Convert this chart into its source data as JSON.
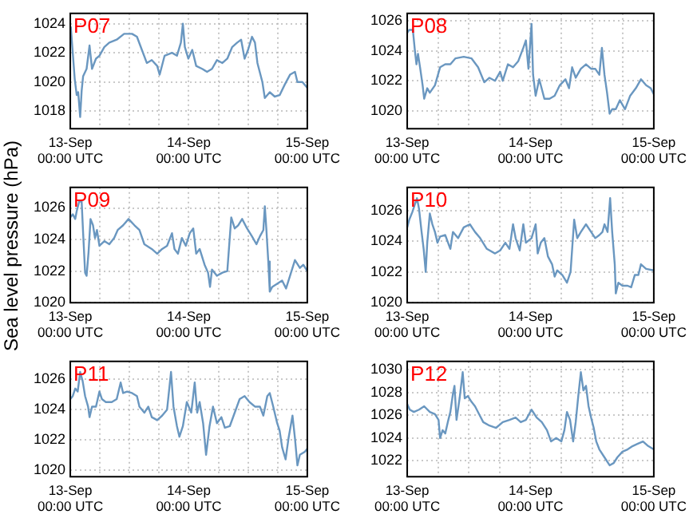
{
  "chart_data": [
    {
      "type": "line",
      "title": "P07",
      "color": "#6a97c0",
      "grid": true,
      "x": [
        "--09-13T00:06",
        "--09-13T00:30",
        "--09-13T00:54",
        "--09-13T01:18",
        "--09-13T01:36",
        "--09-13T02:00",
        "--09-13T02:18",
        "--09-13T02:36",
        "--09-13T03:18",
        "--09-13T03:54",
        "--09-13T04:24",
        "--09-13T05:12",
        "--09-13T05:54",
        "--09-13T06:54",
        "--09-13T07:54",
        "--09-13T09:24",
        "--09-13T10:54",
        "--09-13T12:30",
        "--09-13T13:30",
        "--09-13T14:30",
        "--09-13T15:30",
        "--09-13T16:30",
        "--09-13T17:36",
        "--09-13T18:06",
        "--09-13T19:06",
        "--09-13T20:36",
        "--09-13T21:36",
        "--09-13T22:24",
        "--09-13T22:48",
        "--09-13T23:12",
        "--09-13T23:54",
        "--09-14T00:42",
        "--09-14T01:30",
        "--09-14T02:42",
        "--09-14T03:42",
        "--09-14T04:42",
        "--09-14T05:42",
        "--09-14T06:48",
        "--09-14T07:48",
        "--09-14T08:48",
        "--09-14T09:48",
        "--09-14T10:36",
        "--09-14T11:18",
        "--09-14T12:00",
        "--09-14T12:48",
        "--09-14T13:24",
        "--09-14T13:54",
        "--09-14T14:54",
        "--09-14T15:24",
        "--09-14T16:24",
        "--09-14T17:24",
        "--09-14T18:24",
        "--09-14T19:24",
        "--09-14T20:30",
        "--09-14T21:30",
        "--09-14T22:00",
        "--09-14T23:00",
        "--09-15T00:00"
      ],
      "values": [
        1023.8,
        1022,
        1020.2,
        1019.1,
        1019.3,
        1017.6,
        1019.4,
        1020.4,
        1020.9,
        1022.5,
        1020.9,
        1021.6,
        1021.8,
        1022.4,
        1022.7,
        1022.9,
        1023.3,
        1023.3,
        1023.1,
        1022.2,
        1021.3,
        1021.5,
        1021.1,
        1020.5,
        1021.8,
        1022.0,
        1021.8,
        1022.7,
        1024.0,
        1022.4,
        1021.6,
        1022.2,
        1021.1,
        1020.9,
        1020.7,
        1020.9,
        1021.5,
        1021.3,
        1021.6,
        1022.4,
        1022.7,
        1022.9,
        1021.6,
        1022.2,
        1023.1,
        1022.7,
        1021.3,
        1020.0,
        1018.9,
        1019.3,
        1019.0,
        1019.1,
        1019.8,
        1020.5,
        1020.7,
        1020.0,
        1020.0,
        1019.6
      ],
      "xlim": [
        "--09-13",
        "--09-15"
      ],
      "xticks": [
        {
          "value": "--09-13",
          "label": "13-Sep\n00:00 UTC"
        },
        {
          "value": "--09-13T06:00",
          "label": null
        },
        {
          "value": "--09-13T12:00",
          "label": null
        },
        {
          "value": "--09-13T18:00",
          "label": null
        },
        {
          "value": "--09-14",
          "label": "14-Sep\n00:00 UTC"
        },
        {
          "value": "--09-14T06:00",
          "label": null
        },
        {
          "value": "--09-14T12:00",
          "label": null
        },
        {
          "value": "--09-14T18:00",
          "label": null
        },
        {
          "value": "--09-15",
          "label": "15-Sep\n00:00 UTC"
        }
      ],
      "ylim": [
        1016.8,
        1024.7
      ],
      "yticks": [
        1018,
        1020,
        1022,
        1024
      ]
    },
    {
      "type": "line",
      "title": "P08",
      "color": "#6a97c0",
      "grid": true,
      "x": [
        "--09-13T00:00",
        "--09-13T00:24",
        "--09-13T01:06",
        "--09-13T01:30",
        "--09-13T01:48",
        "--09-13T02:06",
        "--09-13T02:30",
        "--09-13T03:00",
        "--09-13T03:18",
        "--09-13T03:54",
        "--09-13T04:24",
        "--09-13T05:24",
        "--09-13T06:24",
        "--09-13T07:24",
        "--09-13T08:24",
        "--09-13T09:24",
        "--09-13T11:00",
        "--09-13T12:30",
        "--09-13T13:48",
        "--09-13T15:00",
        "--09-13T16:00",
        "--09-13T17:06",
        "--09-13T18:06",
        "--09-13T18:36",
        "--09-13T19:36",
        "--09-13T20:36",
        "--09-13T21:36",
        "--09-13T22:36",
        "--09-13T23:06",
        "--09-13T23:36",
        "--09-14T00:12",
        "--09-14T00:30",
        "--09-14T01:00",
        "--09-14T01:42",
        "--09-14T02:42",
        "--09-14T03:42",
        "--09-14T04:42",
        "--09-14T05:42",
        "--09-14T06:48",
        "--09-14T07:30",
        "--09-14T08:06",
        "--09-14T08:48",
        "--09-14T09:48",
        "--09-14T10:48",
        "--09-14T11:48",
        "--09-14T12:36",
        "--09-14T13:24",
        "--09-14T13:54",
        "--09-14T14:24",
        "--09-14T14:54",
        "--09-14T15:24",
        "--09-14T15:54",
        "--09-14T16:36",
        "--09-14T17:24",
        "--09-14T18:24",
        "--09-14T19:24",
        "--09-14T20:30",
        "--09-14T21:30",
        "--09-14T22:30",
        "--09-14T23:24",
        "--09-15T00:00"
      ],
      "values": [
        1025.2,
        1025.4,
        1025.4,
        1024.0,
        1023.1,
        1023.8,
        1022.9,
        1021.7,
        1020.8,
        1021.5,
        1021.2,
        1021.7,
        1022.9,
        1023.1,
        1023.1,
        1023.5,
        1023.6,
        1023.5,
        1022.9,
        1021.9,
        1022.2,
        1022.0,
        1022.6,
        1022.0,
        1023.1,
        1022.9,
        1023.3,
        1024.2,
        1024.7,
        1022.8,
        1025.8,
        1022.4,
        1021.0,
        1022.1,
        1020.8,
        1020.8,
        1021.0,
        1021.7,
        1022.1,
        1021.5,
        1022.9,
        1022.2,
        1022.8,
        1023.1,
        1022.8,
        1022.8,
        1022.4,
        1024.2,
        1022.4,
        1021.2,
        1019.8,
        1020.1,
        1020.1,
        1020.7,
        1020.1,
        1021.0,
        1021.5,
        1022.1,
        1021.7,
        1021.5,
        1021.1
      ],
      "xlim": [
        "--09-13",
        "--09-15"
      ],
      "xticks": [
        {
          "value": "--09-13",
          "label": "13-Sep\n00:00 UTC"
        },
        {
          "value": "--09-13T06:00",
          "label": null
        },
        {
          "value": "--09-13T12:00",
          "label": null
        },
        {
          "value": "--09-13T18:00",
          "label": null
        },
        {
          "value": "--09-14",
          "label": "14-Sep\n00:00 UTC"
        },
        {
          "value": "--09-14T06:00",
          "label": null
        },
        {
          "value": "--09-14T12:00",
          "label": null
        },
        {
          "value": "--09-14T18:00",
          "label": null
        },
        {
          "value": "--09-15",
          "label": "15-Sep\n00:00 UTC"
        }
      ],
      "ylim": [
        1018.8,
        1026.5
      ],
      "yticks": [
        1020,
        1022,
        1024,
        1026
      ]
    },
    {
      "type": "line",
      "title": "P09",
      "ylabel": "Sea level pressure (hPa)",
      "color": "#6a97c0",
      "grid": true,
      "x": [
        "--09-13T00:00",
        "--09-13T00:30",
        "--09-13T01:00",
        "--09-13T01:18",
        "--09-13T01:48",
        "--09-13T02:18",
        "--09-13T02:36",
        "--09-13T03:00",
        "--09-13T03:18",
        "--09-13T03:42",
        "--09-13T04:06",
        "--09-13T04:36",
        "--09-13T05:00",
        "--09-13T05:24",
        "--09-13T05:54",
        "--09-13T06:54",
        "--09-13T07:54",
        "--09-13T08:54",
        "--09-13T09:36",
        "--09-13T10:42",
        "--09-13T11:48",
        "--09-13T13:00",
        "--09-13T14:00",
        "--09-13T15:00",
        "--09-13T16:30",
        "--09-13T17:36",
        "--09-13T18:36",
        "--09-13T19:36",
        "--09-13T20:36",
        "--09-13T21:06",
        "--09-13T21:48",
        "--09-13T22:36",
        "--09-13T23:24",
        "--09-14T00:12",
        "--09-14T00:54",
        "--09-14T01:30",
        "--09-14T02:12",
        "--09-14T03:12",
        "--09-14T03:54",
        "--09-14T04:18",
        "--09-14T04:42",
        "--09-14T05:42",
        "--09-14T06:48",
        "--09-14T07:48",
        "--09-14T08:36",
        "--09-14T09:18",
        "--09-14T10:00",
        "--09-14T10:48",
        "--09-14T11:48",
        "--09-14T12:48",
        "--09-14T13:42",
        "--09-14T14:24",
        "--09-14T15:06",
        "--09-14T15:24",
        "--09-14T15:42",
        "--09-14T16:06",
        "--09-14T16:24",
        "--09-14T16:54",
        "--09-14T17:54",
        "--09-14T18:54",
        "--09-14T19:42",
        "--09-14T20:30",
        "--09-14T21:30",
        "--09-14T22:30",
        "--09-14T23:12",
        "--09-15T00:00"
      ],
      "values": [
        1025.4,
        1025.6,
        1025.3,
        1025.8,
        1026.4,
        1026.4,
        1024.4,
        1021.9,
        1021.7,
        1023.2,
        1025.3,
        1024.9,
        1024.1,
        1024.6,
        1023.6,
        1023.9,
        1023.7,
        1024.1,
        1024.6,
        1024.9,
        1025.3,
        1024.9,
        1024.6,
        1023.7,
        1023.4,
        1023.1,
        1023.4,
        1023.6,
        1024.4,
        1023.4,
        1023.1,
        1024.1,
        1023.6,
        1024.4,
        1024.7,
        1023.1,
        1023.4,
        1022.4,
        1021.9,
        1021.0,
        1022.1,
        1021.7,
        1021.9,
        1022.0,
        1025.4,
        1024.7,
        1024.9,
        1025.3,
        1024.7,
        1024.2,
        1023.7,
        1024.2,
        1024.6,
        1026.1,
        1024.7,
        1022.6,
        1020.7,
        1021.0,
        1021.2,
        1021.4,
        1020.9,
        1021.7,
        1022.7,
        1022.2,
        1022.4,
        1022.0
      ],
      "xlim": [
        "--09-13",
        "--09-15"
      ],
      "xticks": [
        {
          "value": "--09-13",
          "label": "13-Sep\n00:00 UTC"
        },
        {
          "value": "--09-13T06:00",
          "label": null
        },
        {
          "value": "--09-13T12:00",
          "label": null
        },
        {
          "value": "--09-13T18:00",
          "label": null
        },
        {
          "value": "--09-14",
          "label": "14-Sep\n00:00 UTC"
        },
        {
          "value": "--09-14T06:00",
          "label": null
        },
        {
          "value": "--09-14T12:00",
          "label": null
        },
        {
          "value": "--09-14T18:00",
          "label": null
        },
        {
          "value": "--09-15",
          "label": "15-Sep\n00:00 UTC"
        }
      ],
      "ylim": [
        1020,
        1027.3
      ],
      "yticks": [
        1020,
        1022,
        1024,
        1026
      ]
    },
    {
      "type": "line",
      "title": "P10",
      "color": "#6a97c0",
      "grid": true,
      "x": [
        "--09-13T00:00",
        "--09-13T00:24",
        "--09-13T01:00",
        "--09-13T01:30",
        "--09-13T01:54",
        "--09-13T02:18",
        "--09-13T02:48",
        "--09-13T03:12",
        "--09-13T03:36",
        "--09-13T03:54",
        "--09-13T04:24",
        "--09-13T04:54",
        "--09-13T05:24",
        "--09-13T05:54",
        "--09-13T06:24",
        "--09-13T07:24",
        "--09-13T08:24",
        "--09-13T08:54",
        "--09-13T09:54",
        "--09-13T11:00",
        "--09-13T12:12",
        "--09-13T13:12",
        "--09-13T14:12",
        "--09-13T15:30",
        "--09-13T17:06",
        "--09-13T18:06",
        "--09-13T19:06",
        "--09-13T19:54",
        "--09-13T20:36",
        "--09-13T21:06",
        "--09-13T21:54",
        "--09-13T22:36",
        "--09-13T23:06",
        "--09-14T00:12",
        "--09-14T01:00",
        "--09-14T01:24",
        "--09-14T02:00",
        "--09-14T02:42",
        "--09-14T03:24",
        "--09-14T04:12",
        "--09-14T04:42",
        "--09-14T05:12",
        "--09-14T06:12",
        "--09-14T07:06",
        "--09-14T07:48",
        "--09-14T08:30",
        "--09-14T09:06",
        "--09-14T09:48",
        "--09-14T10:48",
        "--09-14T11:48",
        "--09-14T12:36",
        "--09-14T13:24",
        "--09-14T14:00",
        "--09-14T14:24",
        "--09-14T15:00",
        "--09-14T15:30",
        "--09-14T15:54",
        "--09-14T16:24",
        "--09-14T16:36",
        "--09-14T17:06",
        "--09-14T17:54",
        "--09-14T18:54",
        "--09-14T19:36",
        "--09-14T20:18",
        "--09-14T21:00",
        "--09-14T21:30",
        "--09-14T22:30",
        "--09-15T00:00"
      ],
      "values": [
        1024.9,
        1025.4,
        1025.9,
        1026.4,
        1026.8,
        1026.1,
        1024.6,
        1023.5,
        1022.0,
        1023.9,
        1025.8,
        1025.1,
        1024.6,
        1023.9,
        1024.3,
        1024.4,
        1023.5,
        1024.6,
        1024.2,
        1024.9,
        1025.1,
        1024.6,
        1024.2,
        1023.5,
        1023.2,
        1023.4,
        1023.9,
        1023.5,
        1025.1,
        1024.2,
        1023.4,
        1025.1,
        1023.9,
        1024.2,
        1025.1,
        1023.2,
        1023.9,
        1024.2,
        1023.0,
        1022.5,
        1021.7,
        1022.1,
        1021.8,
        1021.3,
        1022.0,
        1025.4,
        1024.2,
        1024.6,
        1025.1,
        1024.6,
        1024.2,
        1024.4,
        1024.6,
        1025.1,
        1024.6,
        1026.8,
        1024.6,
        1022.5,
        1020.6,
        1021.3,
        1021.1,
        1021.1,
        1021.0,
        1021.8,
        1021.8,
        1022.5,
        1022.2,
        1022.1
      ],
      "xlim": [
        "--09-13",
        "--09-15"
      ],
      "xticks": [
        {
          "value": "--09-13",
          "label": "13-Sep\n00:00 UTC"
        },
        {
          "value": "--09-13T06:00",
          "label": null
        },
        {
          "value": "--09-13T12:00",
          "label": null
        },
        {
          "value": "--09-13T18:00",
          "label": null
        },
        {
          "value": "--09-14",
          "label": "14-Sep\n00:00 UTC"
        },
        {
          "value": "--09-14T06:00",
          "label": null
        },
        {
          "value": "--09-14T12:00",
          "label": null
        },
        {
          "value": "--09-14T18:00",
          "label": null
        },
        {
          "value": "--09-15",
          "label": "15-Sep\n00:00 UTC"
        }
      ],
      "ylim": [
        1020,
        1027.5
      ],
      "yticks": [
        1020,
        1022,
        1024,
        1026
      ]
    },
    {
      "type": "line",
      "title": "P11",
      "color": "#6a97c0",
      "grid": true,
      "x": [
        "--09-13T00:00",
        "--09-13T00:30",
        "--09-13T01:00",
        "--09-13T01:30",
        "--09-13T02:00",
        "--09-13T02:30",
        "--09-13T03:00",
        "--09-13T03:36",
        "--09-13T03:54",
        "--09-13T04:24",
        "--09-13T05:12",
        "--09-13T05:54",
        "--09-13T06:24",
        "--09-13T07:12",
        "--09-13T08:24",
        "--09-13T09:24",
        "--09-13T10:12",
        "--09-13T10:42",
        "--09-13T11:30",
        "--09-13T12:30",
        "--09-13T13:30",
        "--09-13T14:00",
        "--09-13T15:00",
        "--09-13T15:48",
        "--09-13T16:30",
        "--09-13T17:36",
        "--09-13T18:36",
        "--09-13T19:36",
        "--09-13T20:24",
        "--09-13T20:54",
        "--09-13T21:36",
        "--09-13T22:06",
        "--09-13T22:48",
        "--09-13T23:36",
        "--09-14T00:30",
        "--09-14T01:12",
        "--09-14T01:42",
        "--09-14T02:12",
        "--09-14T02:54",
        "--09-14T03:30",
        "--09-14T04:12",
        "--09-14T04:54",
        "--09-14T05:42",
        "--09-14T06:36",
        "--09-14T07:18",
        "--09-14T08:18",
        "--09-14T09:18",
        "--09-14T10:18",
        "--09-14T11:18",
        "--09-14T12:18",
        "--09-14T13:24",
        "--09-14T14:24",
        "--09-14T15:06",
        "--09-14T15:54",
        "--09-14T16:24",
        "--09-14T17:06",
        "--09-14T17:54",
        "--09-14T18:24",
        "--09-14T18:54",
        "--09-14T19:36",
        "--09-14T20:12",
        "--09-14T21:00",
        "--09-14T21:30",
        "--09-14T22:00",
        "--09-14T22:30",
        "--09-14T23:30",
        "--09-15T00:00"
      ],
      "values": [
        1024.7,
        1024.9,
        1025.4,
        1025.2,
        1026.5,
        1025.9,
        1024.9,
        1024.2,
        1023.5,
        1024.2,
        1024.2,
        1025.2,
        1024.7,
        1024.5,
        1024.5,
        1024.7,
        1025.8,
        1025.1,
        1025.2,
        1025.1,
        1024.9,
        1024.2,
        1023.8,
        1024.2,
        1023.5,
        1023.3,
        1023.6,
        1024.0,
        1026.5,
        1024.2,
        1022.9,
        1022.2,
        1022.9,
        1024.5,
        1023.8,
        1025.8,
        1023.8,
        1024.5,
        1023.1,
        1021.0,
        1022.9,
        1024.2,
        1023.1,
        1023.5,
        1022.8,
        1022.9,
        1023.8,
        1024.7,
        1024.9,
        1024.5,
        1024.2,
        1024.2,
        1023.6,
        1024.9,
        1025.1,
        1024.2,
        1023.1,
        1022.6,
        1021.5,
        1020.7,
        1022.1,
        1023.6,
        1022.1,
        1020.3,
        1021.0,
        1021.2,
        1021.4
      ],
      "xlim": [
        "--09-13",
        "--09-15"
      ],
      "xticks": [
        {
          "value": "--09-13",
          "label": "13-Sep\n00:00 UTC"
        },
        {
          "value": "--09-13T06:00",
          "label": null
        },
        {
          "value": "--09-13T12:00",
          "label": null
        },
        {
          "value": "--09-13T18:00",
          "label": null
        },
        {
          "value": "--09-14",
          "label": "14-Sep\n00:00 UTC"
        },
        {
          "value": "--09-14T06:00",
          "label": null
        },
        {
          "value": "--09-14T12:00",
          "label": null
        },
        {
          "value": "--09-14T18:00",
          "label": null
        },
        {
          "value": "--09-15",
          "label": "15-Sep\n00:00 UTC"
        }
      ],
      "ylim": [
        1019.55,
        1027.2
      ],
      "yticks": [
        1020,
        1022,
        1024,
        1026
      ]
    },
    {
      "type": "line",
      "title": "P12",
      "color": "#6a97c0",
      "grid": true,
      "x": [
        "--09-13T00:00",
        "--09-13T00:30",
        "--09-13T01:18",
        "--09-13T02:18",
        "--09-13T03:18",
        "--09-13T04:24",
        "--09-13T05:24",
        "--09-13T06:06",
        "--09-13T06:24",
        "--09-13T06:54",
        "--09-13T07:24",
        "--09-13T07:54",
        "--09-13T08:24",
        "--09-13T08:54",
        "--09-13T09:12",
        "--09-13T09:36",
        "--09-13T10:12",
        "--09-13T10:48",
        "--09-13T11:12",
        "--09-13T11:48",
        "--09-13T12:30",
        "--09-13T13:12",
        "--09-13T14:00",
        "--09-13T14:48",
        "--09-13T16:00",
        "--09-13T17:18",
        "--09-13T18:36",
        "--09-13T19:54",
        "--09-13T21:06",
        "--09-13T22:06",
        "--09-13T23:06",
        "--09-14T00:12",
        "--09-14T01:12",
        "--09-14T02:12",
        "--09-14T03:12",
        "--09-14T04:00",
        "--09-14T05:00",
        "--09-14T06:00",
        "--09-14T06:36",
        "--09-14T07:06",
        "--09-14T07:42",
        "--09-14T08:18",
        "--09-14T08:48",
        "--09-14T09:18",
        "--09-14T09:48",
        "--09-14T10:18",
        "--09-14T10:48",
        "--09-14T11:18",
        "--09-14T11:48",
        "--09-14T12:18",
        "--09-14T12:48",
        "--09-14T13:24",
        "--09-14T14:24",
        "--09-14T15:24",
        "--09-14T16:12",
        "--09-14T16:54",
        "--09-14T17:54",
        "--09-14T18:54",
        "--09-14T19:54",
        "--09-14T20:54",
        "--09-14T21:54",
        "--09-14T22:54",
        "--09-15T00:00"
      ],
      "values": [
        1027.0,
        1026.5,
        1026.3,
        1026.5,
        1026.8,
        1026.3,
        1026.1,
        1025.6,
        1024.0,
        1024.7,
        1024.4,
        1025.4,
        1026.3,
        1027.9,
        1028.6,
        1025.6,
        1027.5,
        1029.8,
        1027.5,
        1027.7,
        1027.2,
        1026.8,
        1026.1,
        1025.4,
        1025.1,
        1024.9,
        1025.4,
        1025.6,
        1025.8,
        1025.4,
        1025.6,
        1026.5,
        1025.8,
        1025.4,
        1024.7,
        1023.7,
        1024.0,
        1023.7,
        1024.7,
        1026.3,
        1025.6,
        1023.7,
        1025.4,
        1027.7,
        1029.8,
        1028.2,
        1028.6,
        1026.8,
        1025.8,
        1024.9,
        1023.7,
        1023.0,
        1022.3,
        1021.6,
        1021.8,
        1022.3,
        1022.8,
        1023.0,
        1023.3,
        1023.5,
        1023.7,
        1023.3,
        1023.0
      ],
      "xlim": [
        "--09-13",
        "--09-15"
      ],
      "xticks": [
        {
          "value": "--09-13",
          "label": "13-Sep\n00:00 UTC"
        },
        {
          "value": "--09-13T06:00",
          "label": null
        },
        {
          "value": "--09-13T12:00",
          "label": null
        },
        {
          "value": "--09-13T18:00",
          "label": null
        },
        {
          "value": "--09-14",
          "label": "14-Sep\n00:00 UTC"
        },
        {
          "value": "--09-14T06:00",
          "label": null
        },
        {
          "value": "--09-14T12:00",
          "label": null
        },
        {
          "value": "--09-14T18:00",
          "label": null
        },
        {
          "value": "--09-15",
          "label": "15-Sep\n00:00 UTC"
        }
      ],
      "ylim": [
        1020.6,
        1030.75
      ],
      "yticks": [
        1022,
        1024,
        1026,
        1028,
        1030
      ]
    }
  ]
}
